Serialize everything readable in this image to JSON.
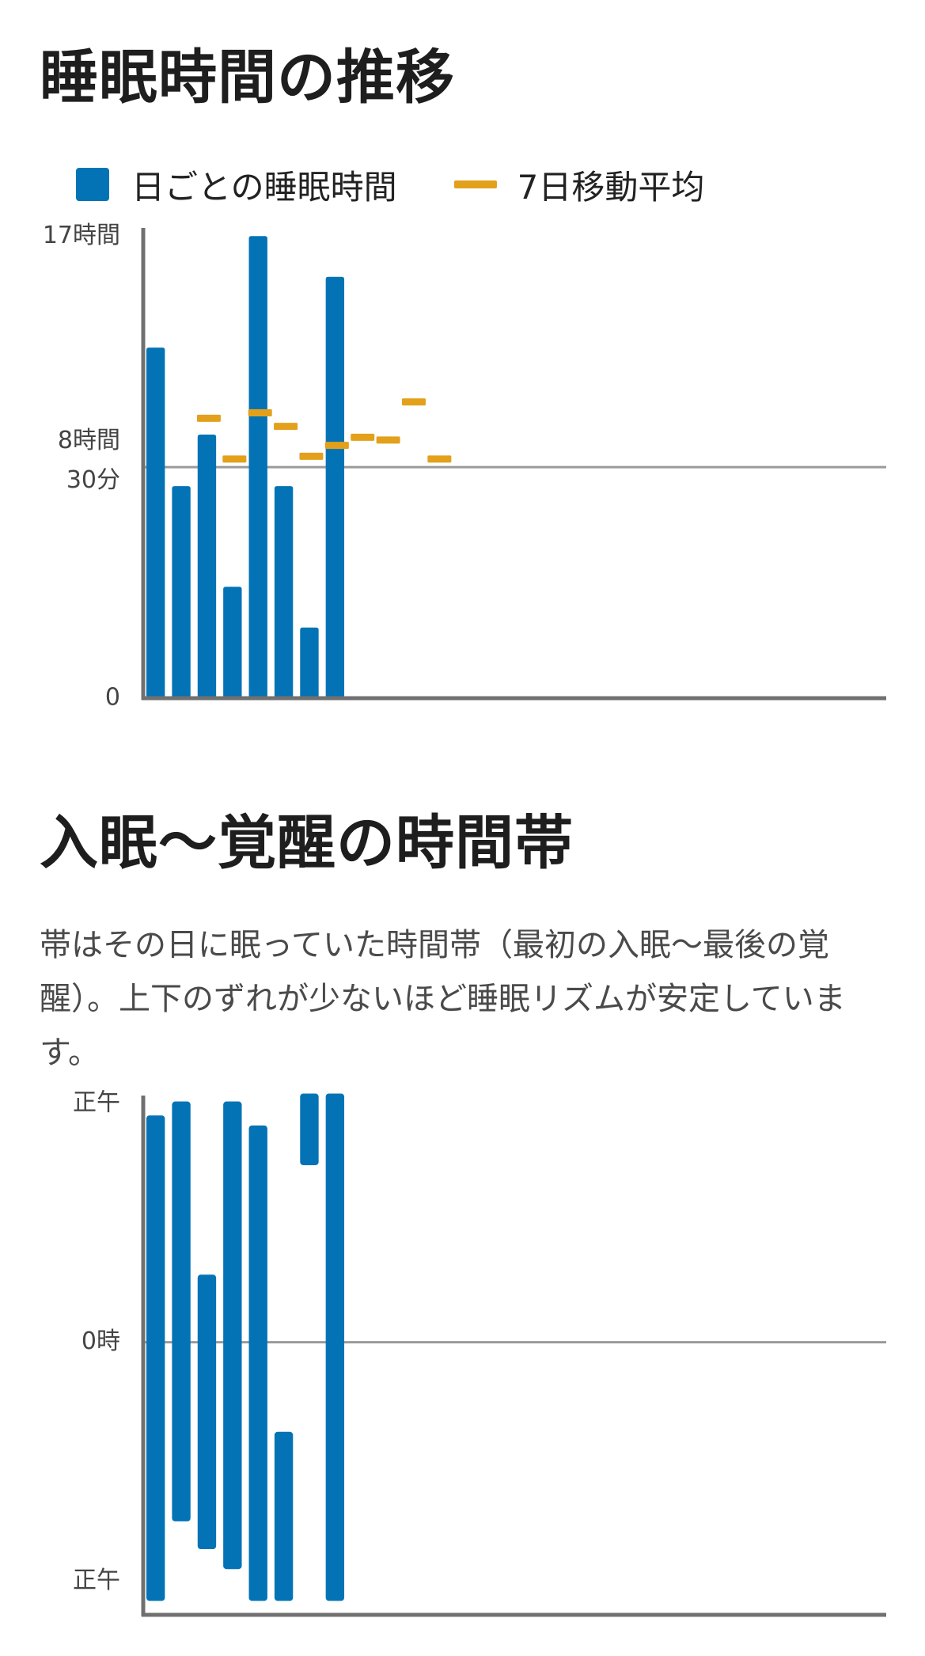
{
  "sections": [
    {
      "title": "睡眠時間の推移"
    },
    {
      "title": "入眠〜覚醒の時間帯",
      "description": "帯はその日に眠っていた時間帯（最初の入眠〜最後の覚醒）。上下のずれが少ないほど睡眠リズムが安定しています。"
    }
  ],
  "colors": {
    "bar": "#0473b5",
    "average": "#e3a01b",
    "axis": "#707070",
    "refline": "#9a9a9a"
  },
  "chart_data": [
    {
      "type": "bar",
      "title": "睡眠時間の推移",
      "legend": [
        "日ごとの睡眠時間",
        "7日移動平均"
      ],
      "legend_placement": "top",
      "unit": "hours",
      "ylim": [
        0,
        17.3
      ],
      "yticks": [
        {
          "value": 0,
          "label": "0"
        },
        {
          "value": 8.5,
          "label": "8時間\n30分"
        },
        {
          "value": 17,
          "label": "17時間"
        }
      ],
      "reference_line": 8.5,
      "slots": 29,
      "series": [
        {
          "name": "日ごとの睡眠時間",
          "type": "bar",
          "values": [
            12.9,
            7.8,
            9.7,
            4.1,
            17.0,
            7.8,
            2.6,
            15.5
          ]
        },
        {
          "name": "7日移動平均",
          "type": "marker",
          "values": [
            null,
            null,
            10.3,
            8.8,
            10.5,
            10.0,
            8.9,
            9.3,
            9.6,
            9.5,
            10.9,
            8.8
          ]
        }
      ]
    },
    {
      "type": "range-bar",
      "title": "入眠〜覚醒の時間帯",
      "unit": "hours since noon",
      "ylim": [
        -0.4,
        25.7
      ],
      "yticks": [
        {
          "value": 0,
          "label": "正午"
        },
        {
          "value": 12,
          "label": "0時"
        },
        {
          "value": 24,
          "label": "正午"
        }
      ],
      "reference_line": 12,
      "slots": 29,
      "series": [
        {
          "name": "入眠〜覚醒",
          "ranges": [
            [
              0.6,
              25.0
            ],
            [
              -0.1,
              21.0
            ],
            [
              8.6,
              22.4
            ],
            [
              -0.1,
              23.4
            ],
            [
              1.1,
              25.0
            ],
            [
              16.5,
              25.0
            ],
            [
              -0.5,
              3.1
            ],
            [
              -0.5,
              25.0
            ]
          ]
        }
      ]
    }
  ]
}
